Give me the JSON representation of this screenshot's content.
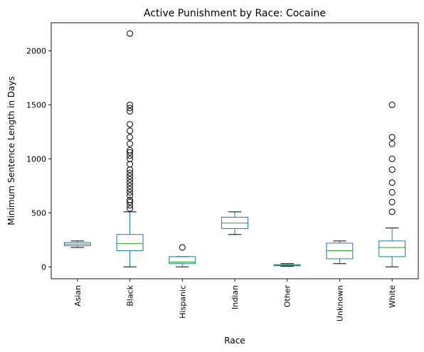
{
  "chart_data": {
    "type": "box",
    "title": "Active Punishment by Race: Cocaine",
    "xlabel": "Race",
    "ylabel": "Minimum Sentence Length in Days",
    "ylim": [
      -110,
      2260
    ],
    "yticks": [
      0,
      500,
      1000,
      1500,
      2000
    ],
    "grid": false,
    "colors": {
      "box": "#1f77b4",
      "median": "#2ca02c",
      "whisker": "#000000",
      "flier": "#000000"
    },
    "categories": [
      "Asian",
      "Black",
      "Hispanic",
      "Indian",
      "Other",
      "Unknown",
      "White"
    ],
    "boxes": [
      {
        "category": "Asian",
        "whisker_low": 180,
        "q1": 195,
        "median": 210,
        "q3": 225,
        "whisker_high": 240,
        "outliers": []
      },
      {
        "category": "Black",
        "whisker_low": 0,
        "q1": 150,
        "median": 215,
        "q3": 300,
        "whisker_high": 510,
        "outliers": [
          540,
          570,
          600,
          620,
          660,
          690,
          720,
          750,
          780,
          810,
          840,
          870,
          900,
          950,
          1000,
          1030,
          1060,
          1080,
          1140,
          1200,
          1260,
          1320,
          1440,
          1470,
          1500,
          2160
        ]
      },
      {
        "category": "Hispanic",
        "whisker_low": 0,
        "q1": 30,
        "median": 45,
        "q3": 95,
        "whisker_high": 95,
        "outliers": [
          180
        ]
      },
      {
        "category": "Indian",
        "whisker_low": 300,
        "q1": 355,
        "median": 405,
        "q3": 460,
        "whisker_high": 510,
        "outliers": []
      },
      {
        "category": "Other",
        "whisker_low": 5,
        "q1": 10,
        "median": 15,
        "q3": 20,
        "whisker_high": 30,
        "outliers": []
      },
      {
        "category": "Unknown",
        "whisker_low": 30,
        "q1": 75,
        "median": 150,
        "q3": 220,
        "whisker_high": 240,
        "outliers": []
      },
      {
        "category": "White",
        "whisker_low": 0,
        "q1": 95,
        "median": 180,
        "q3": 240,
        "whisker_high": 360,
        "outliers": [
          510,
          600,
          690,
          780,
          900,
          1000,
          1140,
          1200,
          1500
        ]
      }
    ]
  }
}
